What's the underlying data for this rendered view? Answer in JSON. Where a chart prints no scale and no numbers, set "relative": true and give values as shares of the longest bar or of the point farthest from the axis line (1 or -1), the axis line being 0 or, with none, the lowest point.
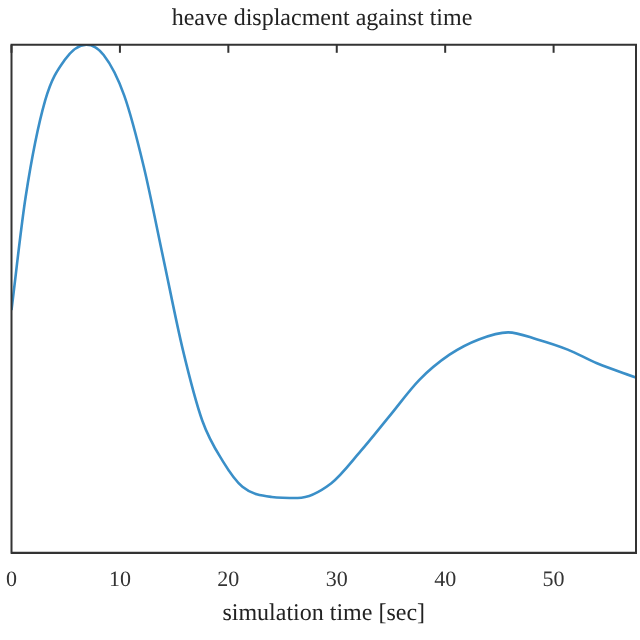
{
  "chart_data": {
    "type": "line",
    "title": "heave displacment against time",
    "xlabel": "simulation time [sec]",
    "relative": true,
    "color": "#3a8fc8",
    "x": [
      0,
      1.3,
      3.1,
      4.9,
      6.9,
      8.5,
      10.4,
      12.2,
      14,
      15.8,
      17.6,
      19.5,
      21.3,
      24,
      26.4,
      29.5,
      32.2,
      34.9,
      37.6,
      40.4,
      43.1,
      45.8,
      48.5,
      51.3,
      54,
      57.6
    ],
    "values": [
      0.478,
      0.7,
      0.89,
      0.97,
      1,
      0.98,
      0.9,
      0.76,
      0.58,
      0.4,
      0.26,
      0.18,
      0.13,
      0.11,
      0.108,
      0.137,
      0.2,
      0.27,
      0.34,
      0.39,
      0.42,
      0.434,
      0.42,
      0.4,
      0.373,
      0.345
    ],
    "xlim": [
      0,
      57.6
    ],
    "xticks": [
      0,
      10,
      20,
      30,
      40,
      50
    ],
    "grid": false,
    "legend": false,
    "marker": "none",
    "line_style": "solid"
  }
}
